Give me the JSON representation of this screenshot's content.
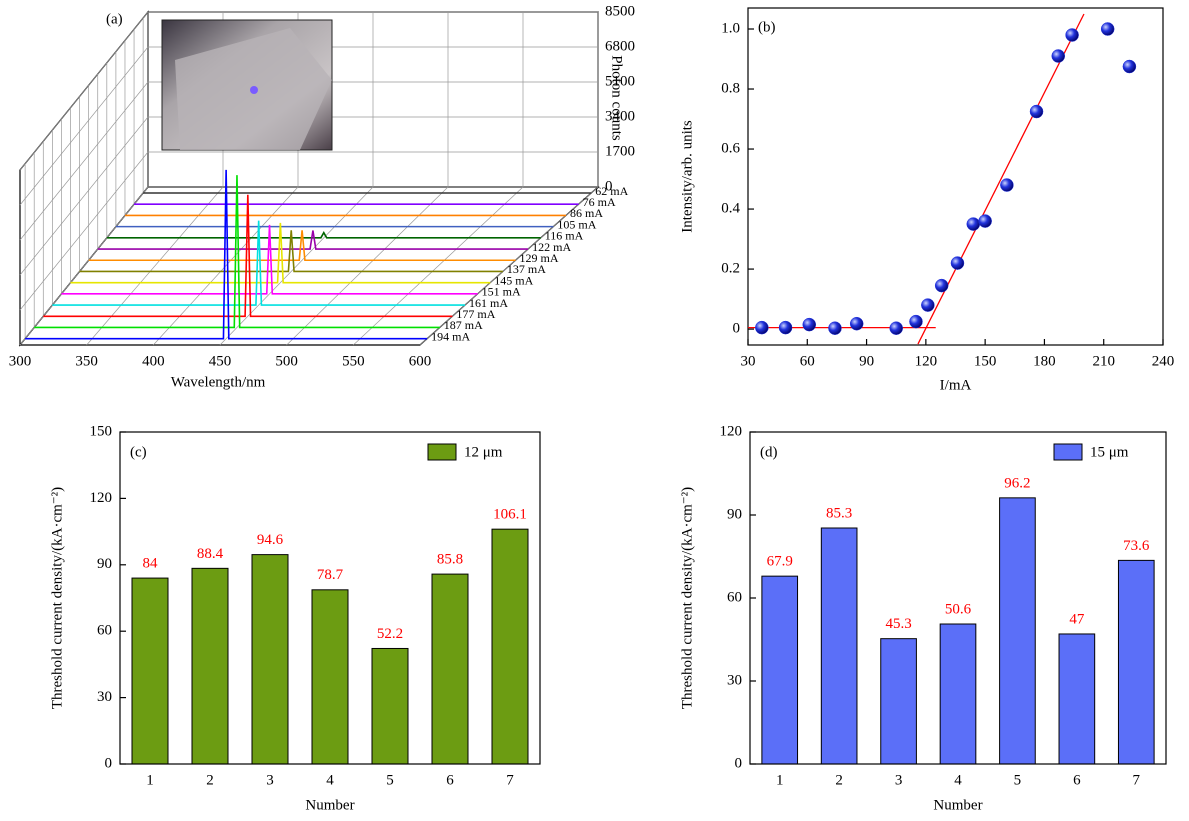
{
  "chart_data": [
    {
      "type": "waterfall3d",
      "panel_label": "(a)",
      "x_label": "Wavelength/nm",
      "z_label": "Photon counts",
      "xlim": [
        300,
        600
      ],
      "xticks": [
        300,
        350,
        400,
        450,
        500,
        550,
        600
      ],
      "zlim": [
        0,
        8500
      ],
      "zticks": [
        0,
        1700,
        3400,
        5100,
        6800,
        8500
      ],
      "x": [
        300,
        448,
        450,
        452,
        600
      ],
      "series": [
        {
          "name": "62 mA",
          "color": "#333333",
          "values": [
            0,
            0,
            0,
            0,
            0
          ]
        },
        {
          "name": "76 mA",
          "color": "#8000ff",
          "values": [
            0,
            0,
            0,
            0,
            0
          ]
        },
        {
          "name": "86 mA",
          "color": "#ff8000",
          "values": [
            0,
            0,
            0,
            0,
            0
          ]
        },
        {
          "name": "105 mA",
          "color": "#4060c0",
          "values": [
            0,
            0,
            0,
            0,
            0
          ]
        },
        {
          "name": "116 mA",
          "color": "#006400",
          "values": [
            0,
            0,
            250,
            0,
            0
          ]
        },
        {
          "name": "122 mA",
          "color": "#9900aa",
          "values": [
            0,
            0,
            900,
            0,
            0
          ]
        },
        {
          "name": "129 mA",
          "color": "#ff8c00",
          "values": [
            0,
            0,
            1450,
            0,
            0
          ]
        },
        {
          "name": "137 mA",
          "color": "#808000",
          "values": [
            0,
            0,
            2000,
            0,
            0
          ]
        },
        {
          "name": "145 mA",
          "color": "#e6e600",
          "values": [
            0,
            0,
            2900,
            0,
            0
          ]
        },
        {
          "name": "151 mA",
          "color": "#ff00ff",
          "values": [
            0,
            0,
            3350,
            0,
            0
          ]
        },
        {
          "name": "161 mA",
          "color": "#00e0e0",
          "values": [
            0,
            0,
            4100,
            0,
            0
          ]
        },
        {
          "name": "177 mA",
          "color": "#ff0000",
          "values": [
            0,
            0,
            5900,
            0,
            0
          ]
        },
        {
          "name": "187 mA",
          "color": "#00e000",
          "values": [
            0,
            0,
            7400,
            0,
            0
          ]
        },
        {
          "name": "194 mA",
          "color": "#0000ff",
          "values": [
            0,
            0,
            8200,
            0,
            0
          ]
        }
      ]
    },
    {
      "type": "scatter",
      "panel_label": "(b)",
      "x_label": "I/mA",
      "y_label": "Intensity/arb. units",
      "xlim": [
        30,
        240
      ],
      "xticks": [
        30,
        60,
        90,
        120,
        150,
        180,
        210,
        240
      ],
      "ylim": [
        -0.053,
        1.07
      ],
      "yticks": [
        0,
        0.2,
        0.4,
        0.6,
        0.8,
        {
          "value": 1,
          "label": "1.0"
        }
      ],
      "color": "#2233dd",
      "x": [
        37,
        49,
        61,
        74,
        85,
        105,
        115,
        121,
        128,
        136,
        144,
        150,
        161,
        176,
        187,
        194,
        212,
        223
      ],
      "values": [
        0.005,
        0.005,
        0.015,
        0.003,
        0.018,
        0.003,
        0.025,
        0.08,
        0.145,
        0.22,
        0.35,
        0.36,
        0.48,
        0.725,
        0.91,
        0.98,
        1.0,
        0.875
      ],
      "fit_color": "#ff0000",
      "fit_lines": [
        {
          "x": [
            30,
            125
          ],
          "y": [
            0.005,
            0.005
          ]
        },
        {
          "x": [
            116,
            200
          ],
          "y": [
            -0.05,
            1.05
          ]
        }
      ]
    },
    {
      "type": "bar",
      "panel_label": "(c)",
      "x_label": "Number",
      "y_label": "Threshold current density/(kA·cm⁻²)",
      "categories": [
        "1",
        "2",
        "3",
        "4",
        "5",
        "6",
        "7"
      ],
      "ylim": [
        0,
        150
      ],
      "yticks": [
        0,
        30,
        60,
        90,
        120,
        150
      ],
      "value_label_color": "#ff0000",
      "legend": "top-right",
      "series": [
        {
          "name": "12 μm",
          "color": "#6c9c12",
          "values": [
            84,
            88.4,
            94.6,
            78.7,
            52.2,
            85.8,
            106.1
          ]
        }
      ]
    },
    {
      "type": "bar",
      "panel_label": "(d)",
      "x_label": "Number",
      "y_label": "Threshold current density/(kA·cm⁻²)",
      "categories": [
        "1",
        "2",
        "3",
        "4",
        "5",
        "6",
        "7"
      ],
      "ylim": [
        0,
        120
      ],
      "yticks": [
        0,
        30,
        60,
        90,
        120
      ],
      "value_label_color": "#ff0000",
      "legend": "top-right",
      "series": [
        {
          "name": "15 μm",
          "color": "#5b6ff8",
          "values": [
            67.9,
            85.3,
            45.3,
            50.6,
            96.2,
            47,
            73.6
          ]
        }
      ]
    }
  ]
}
